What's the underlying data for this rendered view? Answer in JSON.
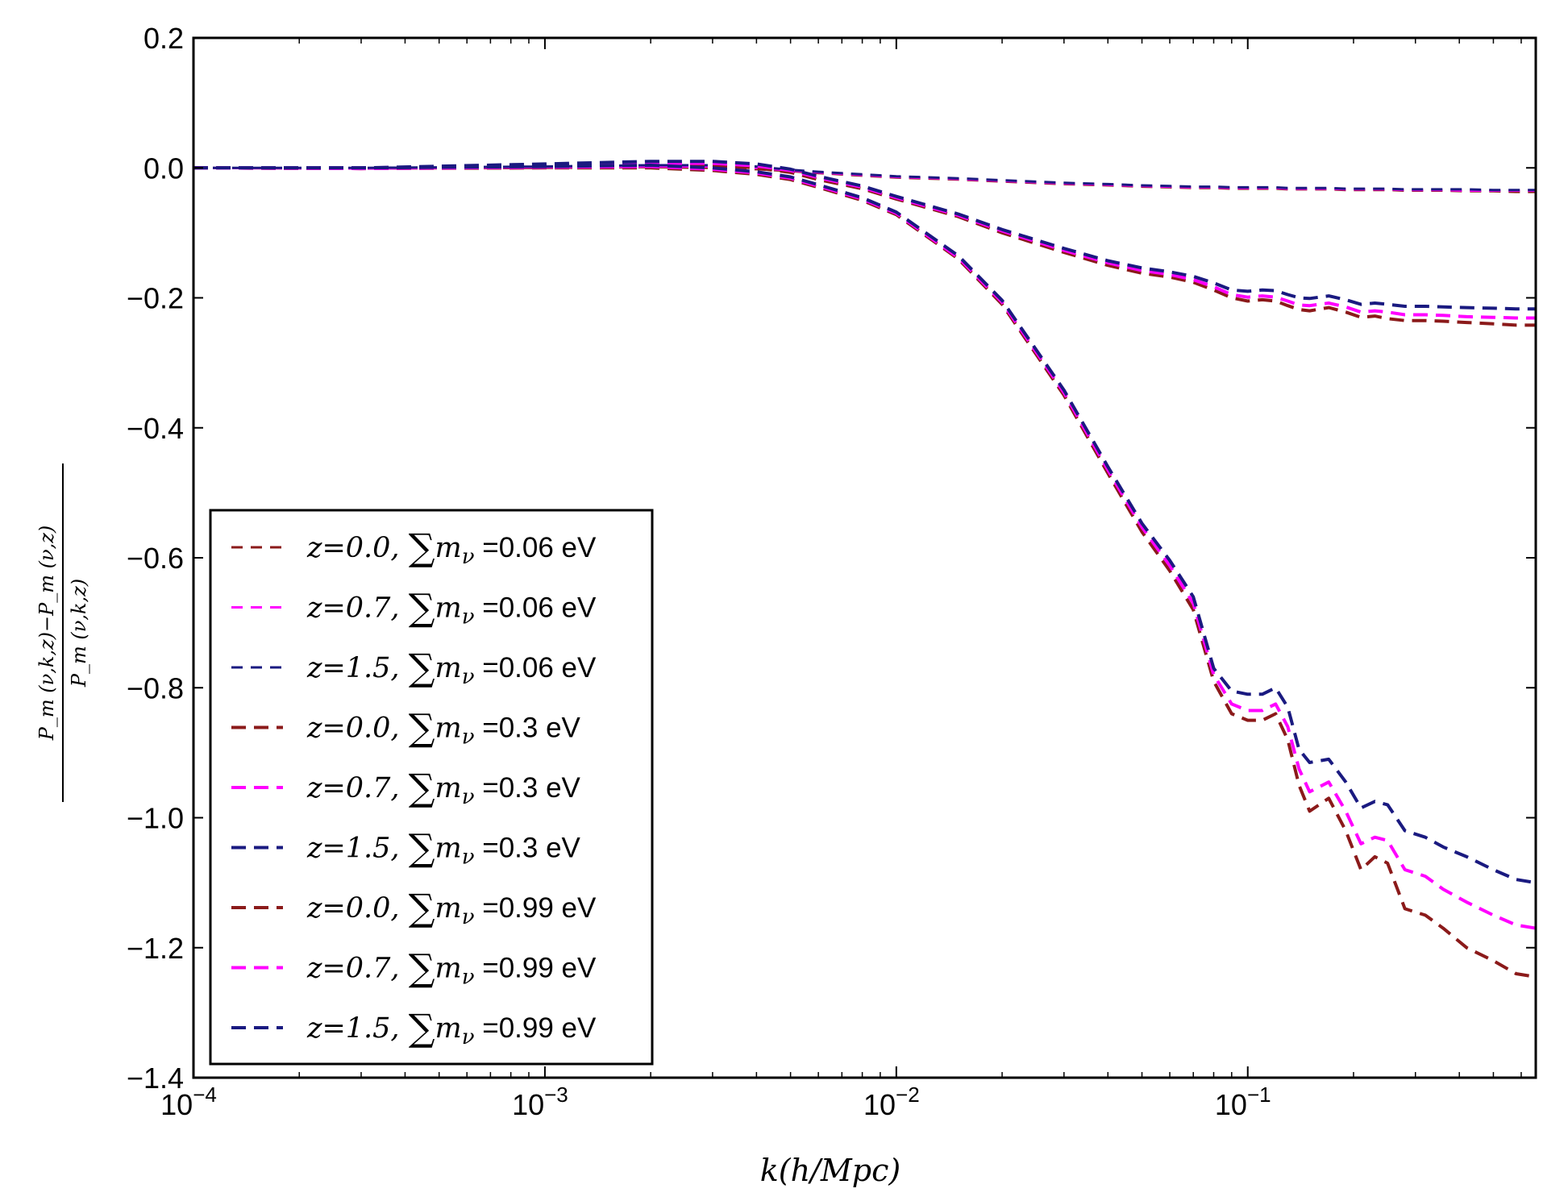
{
  "chart_data": {
    "type": "line",
    "title": "",
    "xlabel": "k(h/Mpc)",
    "ylabel_numerator": "P_m (ν,k,z)−P_m (ν,z)",
    "ylabel_denominator": "P_m (ν,k,z)",
    "xscale": "log",
    "xlim": [
      0.0001,
      0.66
    ],
    "ylim": [
      -1.4,
      0.2
    ],
    "x_ticks": [
      {
        "base": "10",
        "exp": "-4",
        "value": 0.0001
      },
      {
        "base": "10",
        "exp": "-3",
        "value": 0.001
      },
      {
        "base": "10",
        "exp": "-2",
        "value": 0.01
      },
      {
        "base": "10",
        "exp": "-1",
        "value": 0.1
      }
    ],
    "y_ticks": [
      "0.2",
      "0.0",
      "−0.2",
      "−0.4",
      "−0.6",
      "−0.8",
      "−1.0",
      "−1.2",
      "−1.4"
    ],
    "y_tick_values": [
      0.2,
      0.0,
      -0.2,
      -0.4,
      -0.6,
      -0.8,
      -1.0,
      -1.2,
      -1.4
    ],
    "legend_position": "lower-left",
    "x": [
      0.0001,
      0.0003,
      0.001,
      0.002,
      0.003,
      0.004,
      0.005,
      0.006,
      0.008,
      0.01,
      0.015,
      0.02,
      0.03,
      0.04,
      0.05,
      0.06,
      0.07,
      0.08,
      0.09,
      0.1,
      0.11,
      0.12,
      0.13,
      0.14,
      0.15,
      0.17,
      0.19,
      0.21,
      0.23,
      0.25,
      0.28,
      0.32,
      0.36,
      0.42,
      0.5,
      0.58,
      0.66
    ],
    "series": [
      {
        "name_z": "z=0.0,",
        "name_sum": "=0.06 eV",
        "color": "#8b1a1a",
        "dash": "thin",
        "values": [
          0.0,
          -0.001,
          0.0,
          0.001,
          0.0,
          -0.002,
          -0.005,
          -0.008,
          -0.012,
          -0.015,
          -0.018,
          -0.021,
          -0.025,
          -0.027,
          -0.029,
          -0.03,
          -0.031,
          -0.031,
          -0.032,
          -0.032,
          -0.032,
          -0.032,
          -0.033,
          -0.033,
          -0.033,
          -0.033,
          -0.034,
          -0.034,
          -0.034,
          -0.034,
          -0.035,
          -0.035,
          -0.035,
          -0.036,
          -0.036,
          -0.037,
          -0.037
        ]
      },
      {
        "name_z": "z=0.7,",
        "name_sum": "=0.06 eV",
        "color": "#ff00ff",
        "dash": "thin",
        "values": [
          0.0,
          -0.001,
          0.001,
          0.002,
          0.002,
          0.0,
          -0.004,
          -0.007,
          -0.011,
          -0.014,
          -0.017,
          -0.02,
          -0.024,
          -0.026,
          -0.028,
          -0.029,
          -0.03,
          -0.03,
          -0.031,
          -0.031,
          -0.031,
          -0.031,
          -0.032,
          -0.032,
          -0.032,
          -0.032,
          -0.033,
          -0.033,
          -0.033,
          -0.033,
          -0.034,
          -0.034,
          -0.034,
          -0.035,
          -0.035,
          -0.035,
          -0.035
        ]
      },
      {
        "name_z": "z=1.5,",
        "name_sum": "=0.06 eV",
        "color": "#1a1a80",
        "dash": "thin",
        "values": [
          0.0,
          0.0,
          0.002,
          0.004,
          0.004,
          0.002,
          -0.003,
          -0.006,
          -0.01,
          -0.013,
          -0.016,
          -0.019,
          -0.023,
          -0.025,
          -0.027,
          -0.028,
          -0.029,
          -0.029,
          -0.03,
          -0.03,
          -0.03,
          -0.03,
          -0.031,
          -0.031,
          -0.031,
          -0.031,
          -0.032,
          -0.032,
          -0.032,
          -0.032,
          -0.033,
          -0.033,
          -0.033,
          -0.033,
          -0.034,
          -0.034,
          -0.034
        ]
      },
      {
        "name_z": "z=0.0,",
        "name_sum": "=0.3 eV",
        "color": "#8b1a1a",
        "dash": "thick",
        "values": [
          0.0,
          -0.001,
          0.002,
          0.004,
          0.004,
          0.0,
          -0.007,
          -0.018,
          -0.032,
          -0.048,
          -0.075,
          -0.1,
          -0.13,
          -0.15,
          -0.162,
          -0.168,
          -0.176,
          -0.188,
          -0.2,
          -0.205,
          -0.203,
          -0.205,
          -0.212,
          -0.218,
          -0.22,
          -0.215,
          -0.222,
          -0.23,
          -0.228,
          -0.232,
          -0.235,
          -0.235,
          -0.236,
          -0.238,
          -0.24,
          -0.242,
          -0.242
        ]
      },
      {
        "name_z": "z=0.7,",
        "name_sum": "=0.3 eV",
        "color": "#ff00ff",
        "dash": "thick",
        "values": [
          0.0,
          0.0,
          0.004,
          0.007,
          0.007,
          0.003,
          -0.004,
          -0.015,
          -0.03,
          -0.046,
          -0.073,
          -0.097,
          -0.127,
          -0.146,
          -0.158,
          -0.164,
          -0.172,
          -0.183,
          -0.195,
          -0.199,
          -0.197,
          -0.199,
          -0.205,
          -0.211,
          -0.212,
          -0.208,
          -0.214,
          -0.222,
          -0.22,
          -0.222,
          -0.226,
          -0.226,
          -0.227,
          -0.229,
          -0.23,
          -0.231,
          -0.231
        ]
      },
      {
        "name_z": "z=1.5,",
        "name_sum": "=0.3 eV",
        "color": "#1a1a80",
        "dash": "thick",
        "values": [
          0.0,
          0.0,
          0.006,
          0.01,
          0.01,
          0.006,
          -0.002,
          -0.013,
          -0.028,
          -0.044,
          -0.071,
          -0.095,
          -0.124,
          -0.143,
          -0.154,
          -0.16,
          -0.167,
          -0.177,
          -0.188,
          -0.19,
          -0.188,
          -0.189,
          -0.195,
          -0.2,
          -0.201,
          -0.197,
          -0.203,
          -0.21,
          -0.208,
          -0.21,
          -0.213,
          -0.213,
          -0.214,
          -0.215,
          -0.216,
          -0.217,
          -0.217
        ]
      },
      {
        "name_z": "z=0.0,",
        "name_sum": "=0.99 eV",
        "color": "#8b1a1a",
        "dash": "thick",
        "values": [
          0.0,
          -0.001,
          0.0,
          0.0,
          -0.004,
          -0.01,
          -0.018,
          -0.03,
          -0.05,
          -0.072,
          -0.14,
          -0.21,
          -0.35,
          -0.47,
          -0.56,
          -0.62,
          -0.68,
          -0.79,
          -0.84,
          -0.85,
          -0.85,
          -0.84,
          -0.88,
          -0.95,
          -0.99,
          -0.97,
          -1.02,
          -1.08,
          -1.06,
          -1.07,
          -1.14,
          -1.15,
          -1.17,
          -1.2,
          -1.22,
          -1.24,
          -1.245
        ]
      },
      {
        "name_z": "z=0.7,",
        "name_sum": "=0.99 eV",
        "color": "#ff00ff",
        "dash": "thick",
        "values": [
          0.0,
          -0.001,
          0.001,
          0.002,
          -0.002,
          -0.008,
          -0.016,
          -0.028,
          -0.048,
          -0.07,
          -0.138,
          -0.207,
          -0.346,
          -0.465,
          -0.553,
          -0.612,
          -0.67,
          -0.78,
          -0.825,
          -0.835,
          -0.835,
          -0.825,
          -0.86,
          -0.925,
          -0.96,
          -0.945,
          -0.99,
          -1.04,
          -1.03,
          -1.035,
          -1.08,
          -1.09,
          -1.11,
          -1.13,
          -1.15,
          -1.165,
          -1.17
        ]
      },
      {
        "name_z": "z=1.5,",
        "name_sum": "=0.99 eV",
        "color": "#1a1a80",
        "dash": "thick",
        "values": [
          0.0,
          0.0,
          0.002,
          0.004,
          0.0,
          -0.006,
          -0.014,
          -0.026,
          -0.046,
          -0.068,
          -0.135,
          -0.204,
          -0.342,
          -0.46,
          -0.547,
          -0.604,
          -0.66,
          -0.77,
          -0.805,
          -0.81,
          -0.81,
          -0.8,
          -0.83,
          -0.895,
          -0.915,
          -0.91,
          -0.945,
          -0.985,
          -0.975,
          -0.98,
          -1.02,
          -1.03,
          -1.045,
          -1.06,
          -1.08,
          -1.095,
          -1.1
        ]
      }
    ],
    "legend_symbol": "∑",
    "legend_m": "m",
    "legend_nu": "ν"
  }
}
